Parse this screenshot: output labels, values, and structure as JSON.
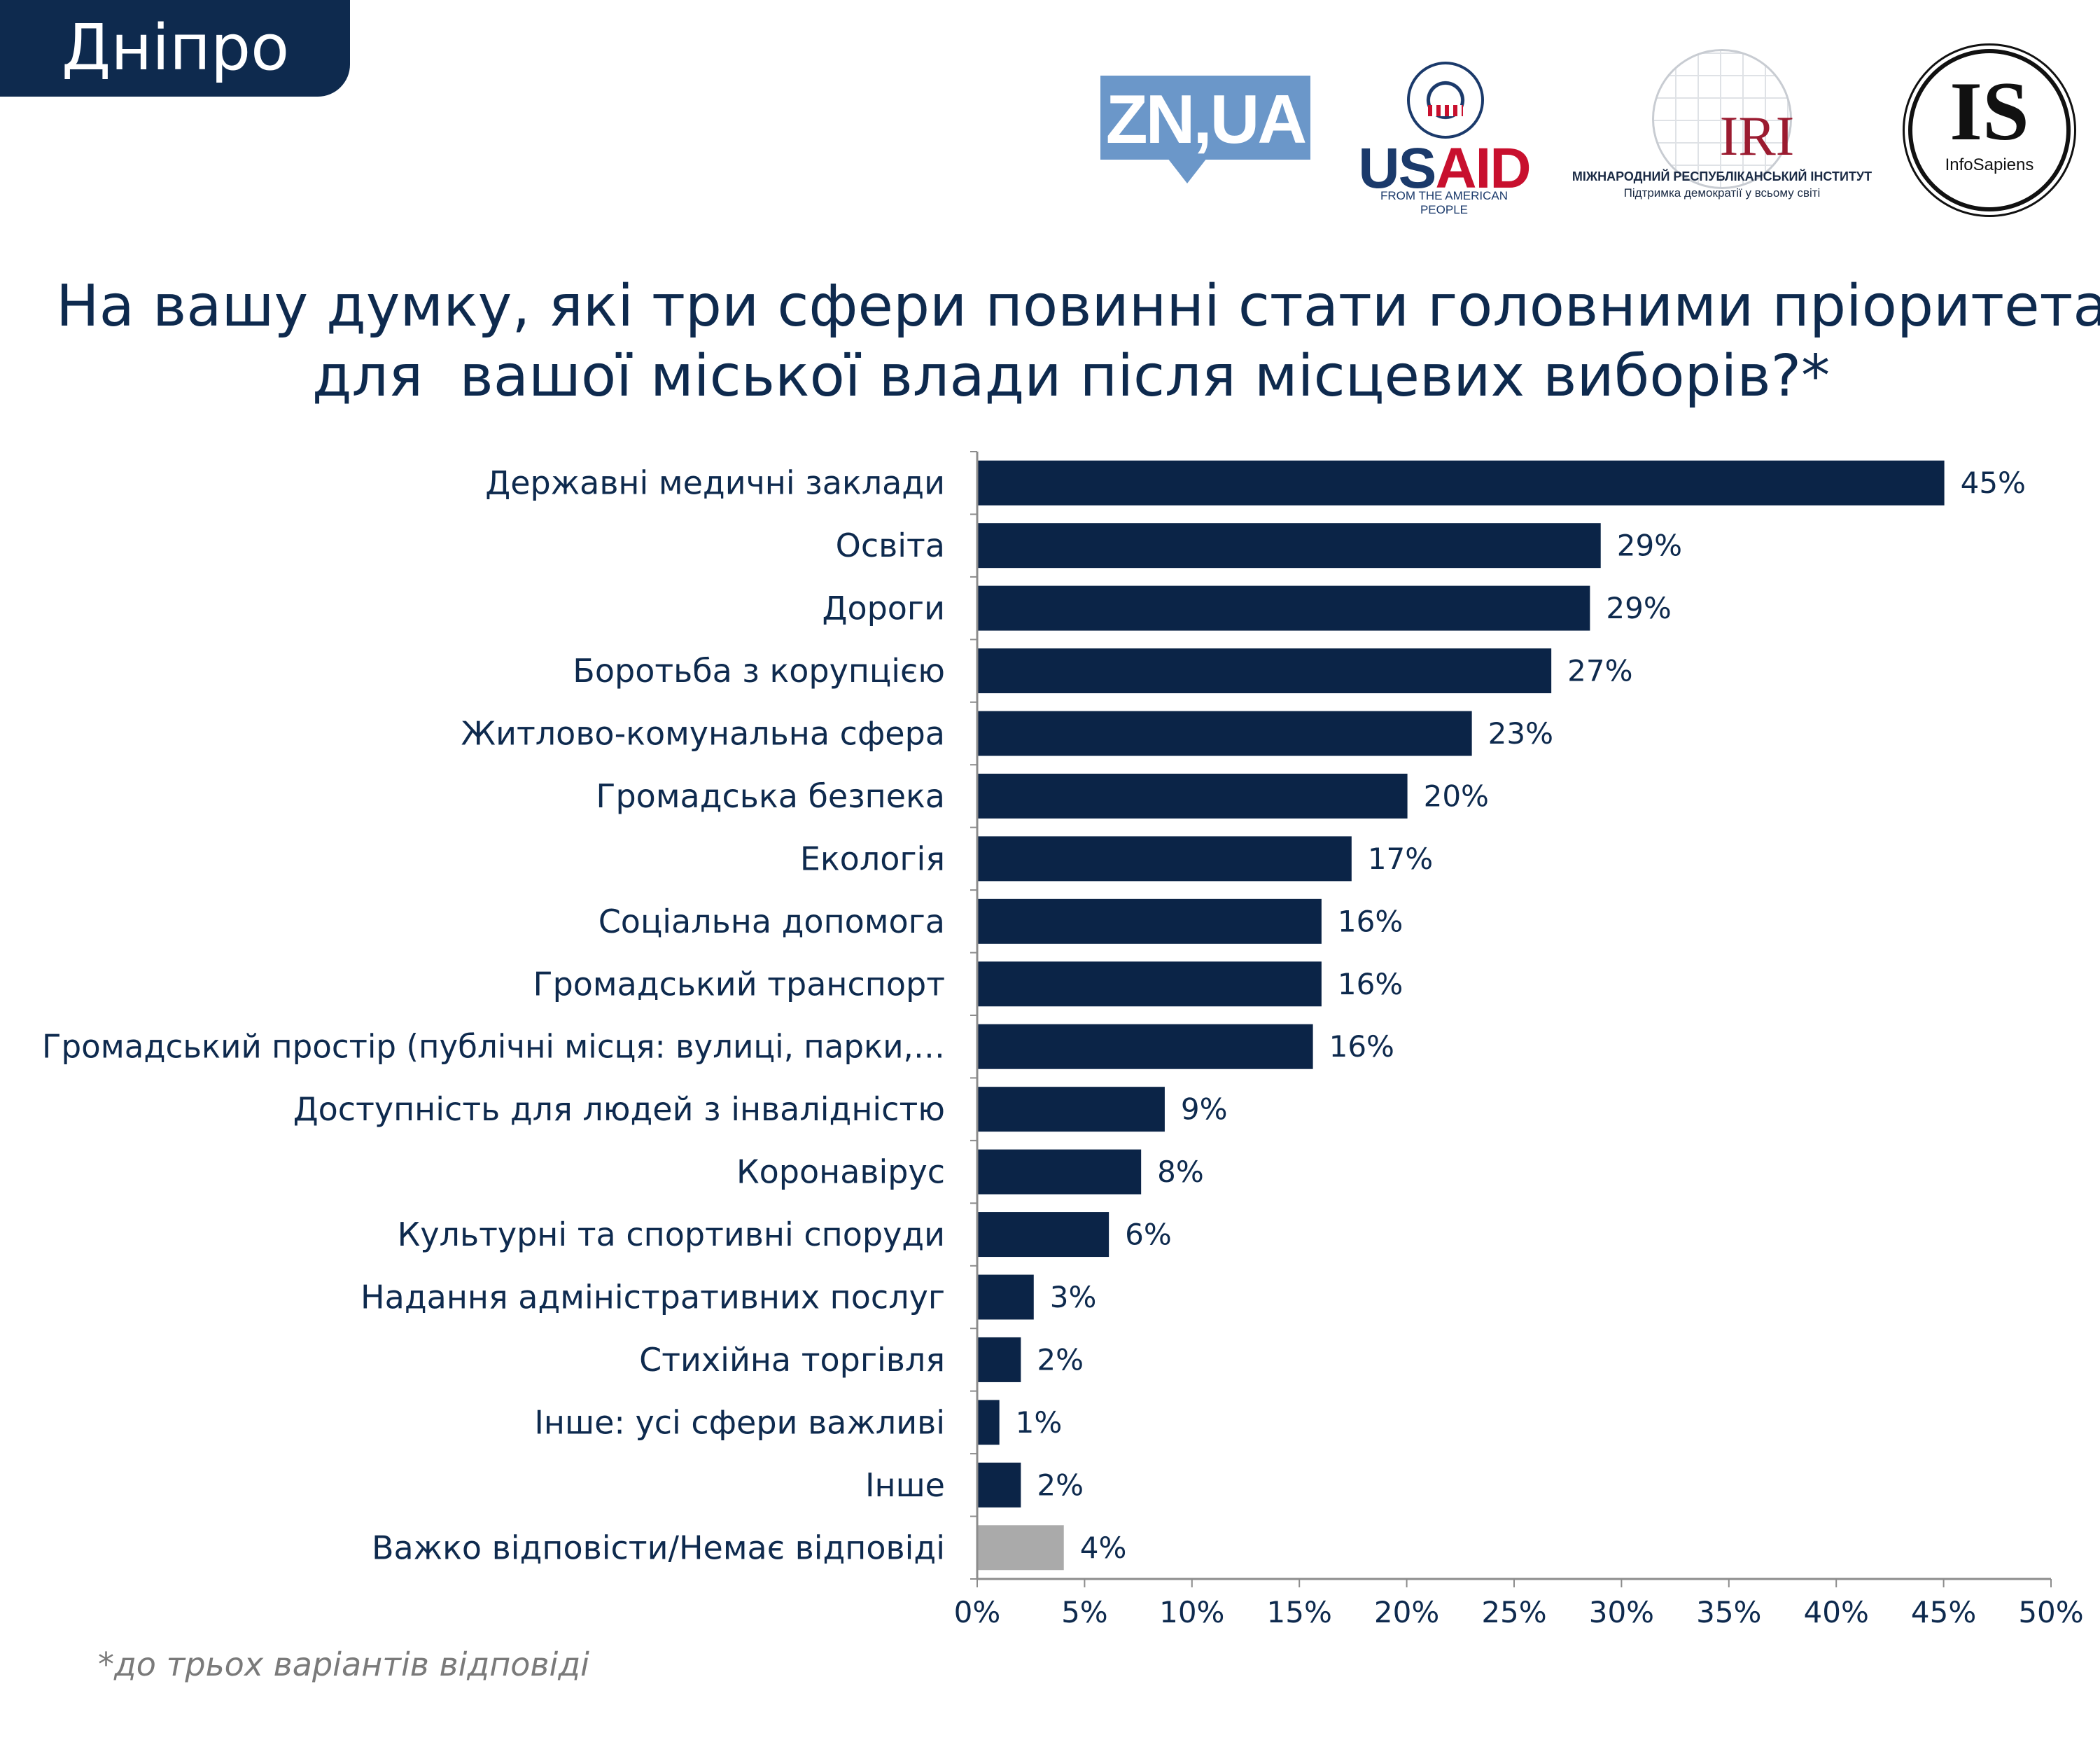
{
  "header": {
    "city": "Дніпро"
  },
  "logos": {
    "zn": "ZN,UA",
    "usaid": {
      "name_part1": "US",
      "name_part2": "AID",
      "tagline": "FROM THE AMERICAN PEOPLE"
    },
    "iri": {
      "name": "IRI",
      "line1": "МІЖНАРОДНИЙ РЕСПУБЛІКАНСЬКИЙ ІНСТИТУТ",
      "line2": "Підтримка демократії у всьому світі"
    },
    "infosapiens": {
      "letters": "IS",
      "name": "InfoSapiens"
    }
  },
  "footnote": "*до трьох варіантів відповіді",
  "colors": {
    "bar": "#0b2447",
    "bar_dk": "#aaaaaa",
    "axis": "#8c8c8c"
  },
  "chart_data": {
    "type": "bar",
    "orientation": "horizontal",
    "title_lines": [
      "На вашу думку, які три сфери повинні стати головними пріоритетами",
      "для  вашої міської влади після місцевих виборів?*"
    ],
    "categories": [
      "Державні медичні заклади",
      "Освіта",
      "Дороги",
      "Боротьба з корупцією",
      "Житлово-комунальна сфера",
      "Громадська безпека",
      "Екологія",
      "Соціальна допомога",
      "Громадський транспорт",
      "Громадський простір (публічні місця: вулиці, парки,…",
      "Доступність для людей з інвалідністю",
      "Коронавірус",
      "Культурні та спортивні споруди",
      "Надання адміністративних послуг",
      "Стихійна торгівля",
      "Інше: усі сфери важливі",
      "Інше",
      "Важко відповісти/Немає відповіді"
    ],
    "values": [
      45,
      29,
      28.5,
      26.7,
      23,
      20,
      17.4,
      16,
      16,
      15.6,
      8.7,
      7.6,
      6.1,
      2.6,
      2,
      1.0,
      2,
      4
    ],
    "value_labels": [
      "45%",
      "29%",
      "29%",
      "27%",
      "23%",
      "20%",
      "17%",
      "16%",
      "16%",
      "16%",
      "9%",
      "8%",
      "6%",
      "3%",
      "2%",
      "1%",
      "2%",
      "4%"
    ],
    "bar_colors": [
      "bar",
      "bar",
      "bar",
      "bar",
      "bar",
      "bar",
      "bar",
      "bar",
      "bar",
      "bar",
      "bar",
      "bar",
      "bar",
      "bar",
      "bar",
      "bar",
      "bar",
      "bar_dk"
    ],
    "xlim": [
      0,
      50
    ],
    "xticks": [
      0,
      5,
      10,
      15,
      20,
      25,
      30,
      35,
      40,
      45,
      50
    ],
    "xtick_labels": [
      "0%",
      "5%",
      "10%",
      "15%",
      "20%",
      "25%",
      "30%",
      "35%",
      "40%",
      "45%",
      "50%"
    ],
    "xlabel": "",
    "ylabel": ""
  }
}
